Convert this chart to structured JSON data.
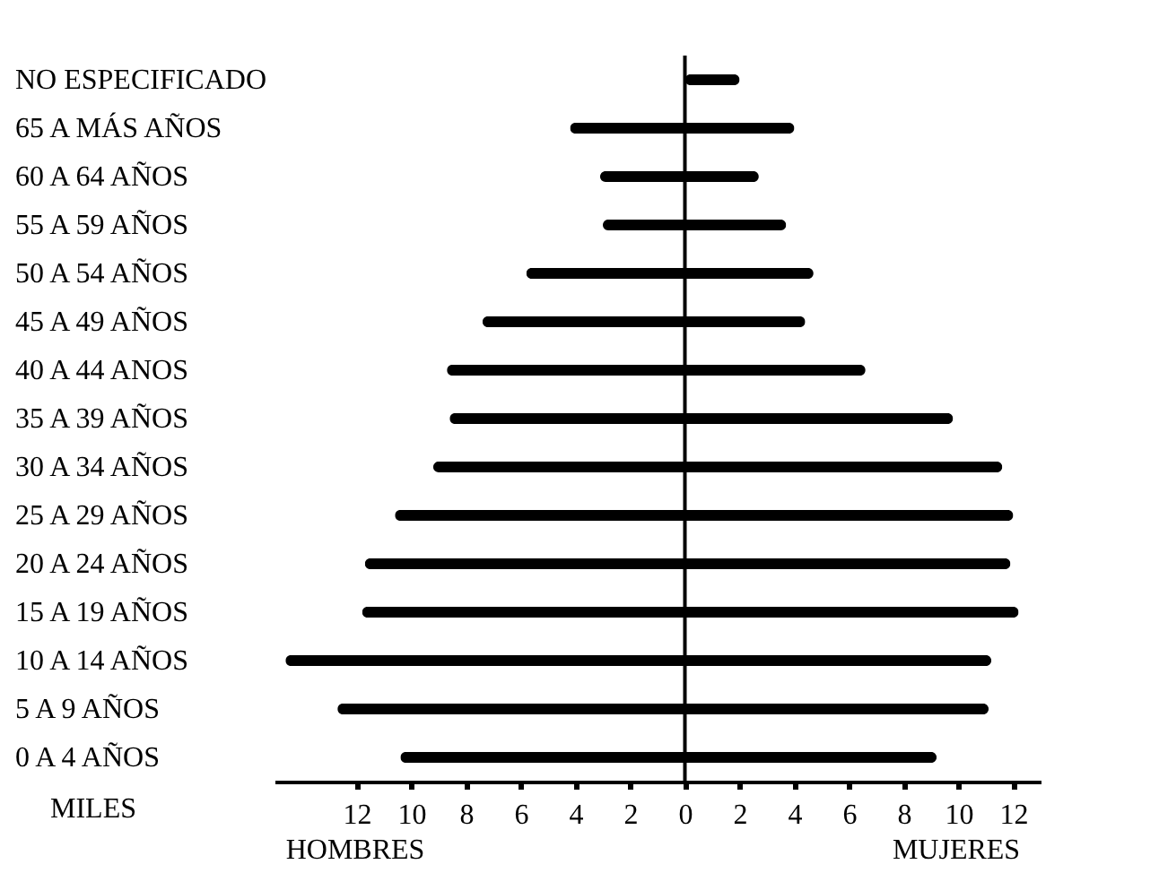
{
  "chart_data": {
    "type": "bar",
    "orientation": "horizontal",
    "categories": [
      "NO ESPECIFICADO",
      "65 A MÁS AÑOS",
      "60 A 64 AÑOS",
      "55 A 59 AÑOS",
      "50 A 54 AÑOS",
      "45 A 49 AÑOS",
      "40 A 44 ANOS",
      "35 A 39 AÑOS",
      "30 A 34 AÑOS",
      "25 A 29 AÑOS",
      "20 A 24 AÑOS",
      "15 A 19 AÑOS",
      "10 A 14 AÑOS",
      "5 A 9 AÑOS",
      "0 A 4 AÑOS"
    ],
    "series": [
      {
        "name": "HOMBRES",
        "color": "#000000",
        "values": [
          null,
          -4.2,
          -3.1,
          -3.0,
          -5.8,
          -7.4,
          -8.7,
          -8.6,
          -9.2,
          -10.6,
          -11.7,
          -11.8,
          -14.6,
          -12.7,
          -10.4
        ]
      },
      {
        "name": "MUJERES",
        "color": "#000000",
        "values": [
          2.0,
          4.0,
          2.7,
          3.7,
          4.7,
          4.4,
          6.6,
          9.8,
          11.6,
          12.0,
          11.9,
          12.2,
          11.2,
          11.1,
          9.2
        ]
      }
    ],
    "xlim": [
      -15,
      13
    ],
    "xticks": [
      {
        "value": -12,
        "label": "12"
      },
      {
        "value": -10,
        "label": "10"
      },
      {
        "value": -8,
        "label": "8"
      },
      {
        "value": -6,
        "label": "6"
      },
      {
        "value": -4,
        "label": "4"
      },
      {
        "value": -2,
        "label": "2"
      },
      0,
      2,
      4,
      6,
      8,
      10,
      12
    ],
    "ref_lines": [
      {
        "axis": "x",
        "value": 0
      }
    ],
    "annotations": [
      "MILES"
    ],
    "stacked": true,
    "grid": false,
    "legend": false
  }
}
